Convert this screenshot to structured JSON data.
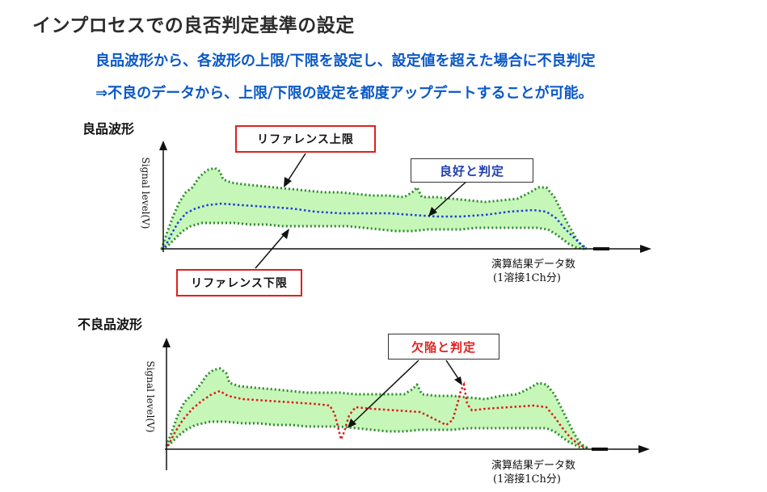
{
  "header": {
    "title": "インプロセスでの良否判定基準の設定",
    "subtitle1": "良品波形から、各波形の上限/下限を設定し、設定値を超えた場合に不良判定",
    "subtitle2": "⇒不良のデータから、上限/下限の設定を都度アップデートすることが可能。"
  },
  "charts": {
    "good": {
      "label": "良品波形",
      "ylabel": "Signal level(V)",
      "xlabel_line1": "演算結果データ数",
      "xlabel_line2": "(1溶接1Ch分)",
      "callout_upper": "リファレンス上限",
      "callout_lower": "リファレンス下限",
      "callout_judge": "良好と判定"
    },
    "bad": {
      "label": "不良品波形",
      "ylabel": "Signal level(V)",
      "xlabel_line1": "演算結果データ数",
      "xlabel_line2": "(1溶接1Ch分)",
      "callout_judge": "欠陥と判定"
    }
  },
  "colors": {
    "band_fill": "#c6f7b9",
    "band_edge": "#2f8a2f",
    "good_signal": "#1e3fd8",
    "bad_signal": "#e01818",
    "callout_border": "#e02020"
  }
}
